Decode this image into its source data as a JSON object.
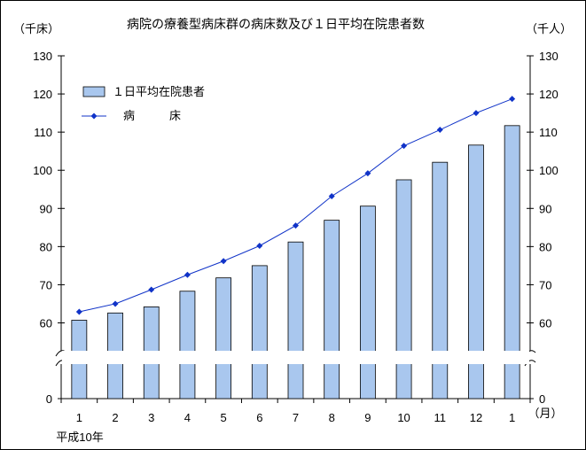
{
  "chart_data": {
    "type": "bar",
    "title": "病院の療養型病床群の病床数及び１日平均在院患者数",
    "left_unit": "（千床）",
    "right_unit": "（千人）",
    "x_unit": "（月）",
    "x_sub_label": "平成10年",
    "categories": [
      "1",
      "2",
      "3",
      "4",
      "5",
      "6",
      "7",
      "8",
      "9",
      "10",
      "11",
      "12",
      "1"
    ],
    "series": [
      {
        "name": "１日平均在院患者",
        "kind": "bar",
        "axis": "right",
        "color": "#a9c7ee",
        "values": [
          60.7,
          62.6,
          64.2,
          68.3,
          71.8,
          75.0,
          81.2,
          86.9,
          90.6,
          97.5,
          102.1,
          106.6,
          111.7
        ]
      },
      {
        "name": "病　　　床",
        "kind": "line",
        "axis": "left",
        "color": "#1033c8",
        "values": [
          62.9,
          65.0,
          68.7,
          72.6,
          76.2,
          80.2,
          85.5,
          93.2,
          99.2,
          106.4,
          110.6,
          115.0,
          118.7
        ]
      }
    ],
    "y_ticks": [
      "130",
      "120",
      "110",
      "100",
      "90",
      "80",
      "70",
      "60",
      "0"
    ],
    "y_tick_values": [
      130,
      120,
      110,
      100,
      90,
      80,
      70,
      60,
      0
    ],
    "ylim": [
      50,
      130
    ],
    "axis_break": true,
    "grid": false,
    "legend_position": "top-left"
  }
}
